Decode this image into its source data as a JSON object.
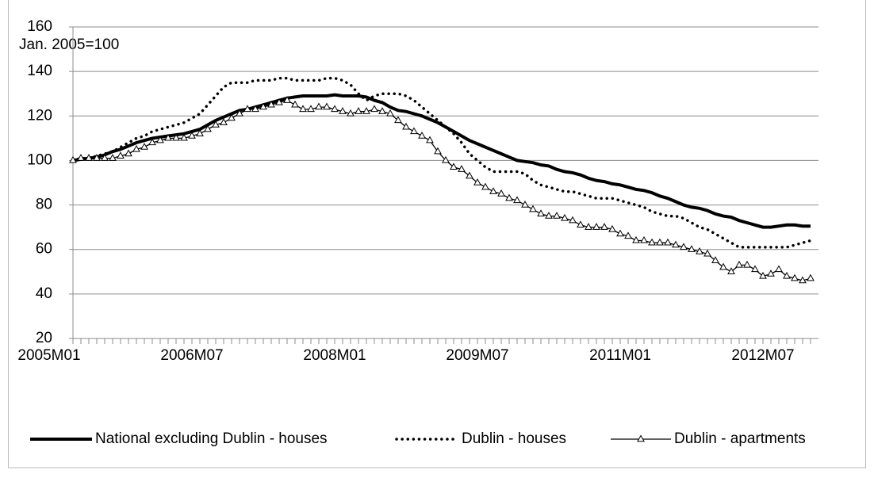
{
  "chart_data": {
    "type": "line",
    "annotation": "Jan. 2005=100",
    "categories": [
      "2005M01",
      null,
      null,
      null,
      null,
      null,
      null,
      null,
      null,
      null,
      null,
      null,
      null,
      null,
      null,
      null,
      null,
      null,
      "2006M07",
      null,
      null,
      null,
      null,
      null,
      null,
      null,
      null,
      null,
      null,
      null,
      null,
      null,
      null,
      null,
      null,
      null,
      "2008M01",
      null,
      null,
      null,
      null,
      null,
      null,
      null,
      null,
      null,
      null,
      null,
      null,
      null,
      null,
      null,
      null,
      null,
      "2009M07",
      null,
      null,
      null,
      null,
      null,
      null,
      null,
      null,
      null,
      null,
      null,
      null,
      null,
      null,
      null,
      null,
      null,
      "2011M01",
      null,
      null,
      null,
      null,
      null,
      null,
      null,
      null,
      null,
      null,
      null,
      null,
      null,
      null,
      null,
      null,
      null,
      "2012M07",
      null,
      null,
      null
    ],
    "series": [
      {
        "name": "National excluding Dublin - houses",
        "color": "#000000",
        "line_style": "solid",
        "values": [
          100,
          100.5,
          101,
          101.5,
          102.5,
          104,
          105,
          106.5,
          108,
          109,
          110,
          110.5,
          111,
          111.5,
          112,
          113,
          114,
          116,
          118,
          119.5,
          121,
          122.5,
          123,
          124,
          125,
          126,
          127,
          128,
          128.5,
          129,
          129,
          129,
          129,
          129.5,
          129,
          129,
          129,
          128.5,
          127,
          126,
          124,
          122.5,
          122,
          121,
          120,
          118.5,
          117,
          115,
          113,
          111,
          109,
          107.5,
          106,
          104.5,
          103,
          101.5,
          100,
          99.5,
          99,
          98,
          97.5,
          96,
          95,
          94.5,
          93.5,
          92,
          91,
          90.5,
          89.5,
          89,
          88,
          87,
          86.5,
          85.5,
          84,
          83,
          81.5,
          80,
          79,
          78.5,
          77.5,
          76,
          75,
          74.5,
          73,
          72,
          71,
          70,
          70,
          70.5,
          71,
          71,
          70.5,
          70.5
        ]
      },
      {
        "name": "Dublin - houses",
        "color": "#000000",
        "line_style": "dotted",
        "values": [
          100,
          101,
          101,
          102,
          103,
          104,
          106,
          108,
          110,
          111,
          113,
          114,
          115,
          116,
          117,
          119,
          121,
          125,
          129,
          133,
          135,
          135,
          135,
          136,
          136,
          136,
          137,
          137,
          136,
          136,
          136,
          136,
          137,
          137,
          136,
          134,
          130,
          127,
          129,
          130,
          130,
          130,
          129,
          127,
          124,
          121,
          118,
          115,
          112,
          108,
          103,
          100,
          97,
          95,
          95,
          95,
          95,
          94,
          91,
          89,
          88,
          87,
          86,
          86,
          85,
          84,
          83,
          83,
          83,
          82,
          81,
          80,
          79,
          77,
          76,
          75,
          75,
          74,
          72,
          70,
          69,
          67,
          65,
          63,
          61,
          61,
          61,
          61,
          61,
          61,
          61,
          62,
          63,
          64
        ]
      },
      {
        "name": "Dublin - apartments",
        "color": "#000000",
        "line_style": "solid",
        "marker": "triangle",
        "values": [
          100,
          101,
          101,
          101,
          101,
          101,
          102,
          103,
          105,
          106,
          108,
          109,
          110,
          110,
          110,
          111,
          112,
          114,
          116,
          117,
          119,
          121,
          123,
          123,
          124,
          125,
          126,
          127,
          125,
          123,
          123,
          124,
          124,
          123,
          122,
          121,
          122,
          122,
          123,
          122,
          121,
          118,
          115,
          113,
          111,
          109,
          104,
          100,
          97,
          96,
          93,
          90,
          88,
          86,
          85,
          83,
          82,
          80,
          78,
          76,
          75,
          75,
          74,
          73,
          71,
          70,
          70,
          70,
          69,
          67,
          66,
          64,
          64,
          63,
          63,
          63,
          62,
          61,
          60,
          59,
          58,
          55,
          52,
          50,
          53,
          53,
          51,
          48,
          49,
          51,
          48,
          47,
          46,
          47
        ]
      }
    ],
    "ylim": [
      20,
      160
    ],
    "yticks": [
      20,
      40,
      60,
      80,
      100,
      120,
      140,
      160
    ],
    "grid": true,
    "legend": "bottom"
  }
}
